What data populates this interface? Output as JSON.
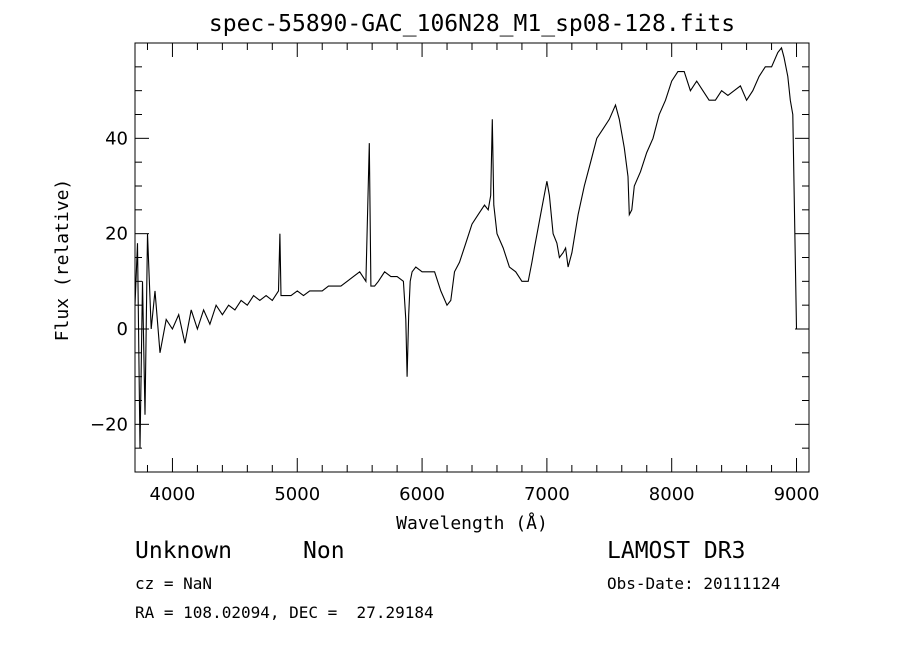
{
  "chart_data": {
    "type": "line",
    "title": "spec-55890-GAC_106N28_M1_sp08-128.fits",
    "xlabel": "Wavelength (Å)",
    "ylabel": "Flux (relative)",
    "xlim": [
      3700,
      9100
    ],
    "ylim": [
      -30,
      60
    ],
    "xticks": [
      4000,
      5000,
      6000,
      7000,
      8000,
      9000
    ],
    "xtick_labels": [
      "4000",
      "5000",
      "6000",
      "7000",
      "8000",
      "9000"
    ],
    "yticks": [
      -20,
      0,
      20,
      40
    ],
    "ytick_labels": [
      "−20",
      "0",
      "20",
      "40"
    ],
    "grid": false,
    "series": [
      {
        "color": "#000000",
        "x": [
          3700,
          3720,
          3740,
          3760,
          3780,
          3800,
          3830,
          3860,
          3900,
          3950,
          4000,
          4050,
          4100,
          4150,
          4200,
          4250,
          4300,
          4350,
          4400,
          4450,
          4500,
          4550,
          4600,
          4650,
          4700,
          4750,
          4800,
          4850,
          4861,
          4870,
          4900,
          4950,
          5000,
          5050,
          5100,
          5150,
          5200,
          5250,
          5300,
          5350,
          5400,
          5450,
          5500,
          5550,
          5577,
          5590,
          5620,
          5650,
          5700,
          5750,
          5800,
          5850,
          5870,
          5880,
          5893,
          5905,
          5920,
          5950,
          6000,
          6050,
          6100,
          6150,
          6200,
          6230,
          6260,
          6300,
          6350,
          6400,
          6450,
          6500,
          6530,
          6550,
          6563,
          6575,
          6600,
          6650,
          6700,
          6750,
          6800,
          6850,
          6880,
          6900,
          6950,
          7000,
          7020,
          7050,
          7080,
          7100,
          7130,
          7150,
          7170,
          7200,
          7250,
          7300,
          7350,
          7400,
          7450,
          7500,
          7550,
          7580,
          7620,
          7650,
          7660,
          7680,
          7700,
          7750,
          7800,
          7850,
          7900,
          7950,
          8000,
          8050,
          8100,
          8150,
          8200,
          8250,
          8300,
          8350,
          8400,
          8450,
          8500,
          8550,
          8600,
          8650,
          8700,
          8750,
          8800,
          8850,
          8880,
          8900,
          8930,
          8950,
          8970,
          9000,
          9010
        ],
        "y": [
          5,
          18,
          -25,
          10,
          -18,
          20,
          0,
          8,
          -5,
          2,
          0,
          3,
          -3,
          4,
          0,
          4,
          1,
          5,
          3,
          5,
          4,
          6,
          5,
          7,
          6,
          7,
          6,
          8,
          20,
          7,
          7,
          7,
          8,
          7,
          8,
          8,
          8,
          9,
          9,
          9,
          10,
          11,
          12,
          10,
          39,
          9,
          9,
          10,
          12,
          11,
          11,
          10,
          2,
          -10,
          3,
          10,
          12,
          13,
          12,
          12,
          12,
          8,
          5,
          6,
          12,
          14,
          18,
          22,
          24,
          26,
          25,
          28,
          44,
          26,
          20,
          17,
          13,
          12,
          10,
          10,
          14,
          17,
          24,
          31,
          28,
          20,
          18,
          15,
          16,
          17,
          13,
          16,
          24,
          30,
          35,
          40,
          42,
          44,
          47,
          44,
          38,
          32,
          24,
          25,
          30,
          33,
          37,
          40,
          45,
          48,
          52,
          54,
          54,
          50,
          52,
          50,
          48,
          48,
          50,
          49,
          50,
          51,
          48,
          50,
          53,
          55,
          55,
          58,
          59,
          57,
          53,
          48,
          45,
          0,
          0
        ]
      }
    ]
  },
  "footer": {
    "object_class": "Unknown",
    "subclass": "Non",
    "survey": "LAMOST DR3",
    "redshift": "cz = NaN",
    "obs_date": "Obs-Date: 20111124",
    "coords": "RA = 108.02094, DEC =  27.29184"
  }
}
